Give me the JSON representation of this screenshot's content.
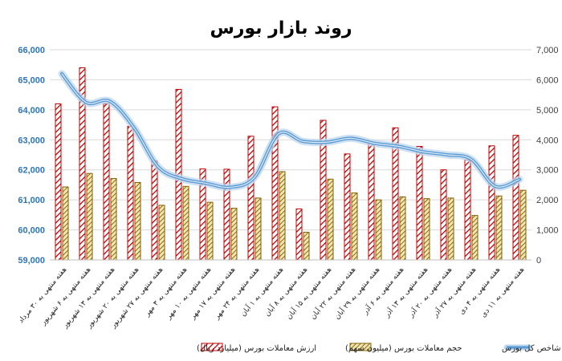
{
  "chart_data": {
    "type": "bar",
    "title": "روند بازار بورس",
    "categories": [
      "هفته منتهی به ۳۰ مرداد",
      "هفته منتهی به ۶ شهریور",
      "هفته منتهی به ۱۳ شهریور",
      "هفته منتهی به ۲۰ شهریور",
      "هفته منتهی به ۲۷ شهریور",
      "هفته منتهی به ۳ مهر",
      "هفته منتهی به ۱۰ مهر",
      "هفته منتهی به ۱۷ مهر",
      "هفته منتهی به ۲۴ مهر",
      "هفته منتهی به ۱ آبان",
      "هفته منتهی به ۸ آبان",
      "هفته منتهی به ۱۵ آبان",
      "هفته منتهی به ۲۲ آبان",
      "هفته منتهی به ۲۹ آبان",
      "هفته منتهی به ۶ آذر",
      "هفته منتهی به ۱۳ آذر",
      "هفته منتهی به ۲۰ آذر",
      "هفته منتهی به ۲۷ آذر",
      "هفته منتهی به ۴ دی",
      "هفته منتهی به ۱۱ دی"
    ],
    "left_axis": {
      "ylim": [
        59000,
        66000
      ],
      "ticks": [
        "59,000",
        "60,000",
        "61,000",
        "62,000",
        "63,000",
        "64,000",
        "65,000",
        "66,000"
      ]
    },
    "right_axis": {
      "ylim": [
        0,
        7000
      ],
      "ticks": [
        "0",
        "1,000",
        "2,000",
        "3,000",
        "4,000",
        "5,000",
        "6,000",
        "7,000"
      ]
    },
    "series": [
      {
        "name": "ارزش معاملات بورس (میلیارد ریال)",
        "kind": "bar",
        "axis": "right",
        "color": "#c00000",
        "values": [
          5200,
          6400,
          5200,
          4450,
          3300,
          5680,
          3030,
          3020,
          4120,
          5100,
          1700,
          4650,
          3530,
          3900,
          4400,
          3780,
          3000,
          3330,
          3800,
          4150
        ]
      },
      {
        "name": "حجم معاملات بورس (میلیون سهم)",
        "kind": "bar",
        "axis": "right",
        "color": "#7f6000",
        "values": [
          2430,
          2880,
          2710,
          2580,
          1820,
          2450,
          1920,
          1720,
          2060,
          2940,
          920,
          2690,
          2230,
          2000,
          2100,
          2040,
          2060,
          1480,
          2130,
          2320
        ]
      },
      {
        "name": "شاخص کل بورس",
        "kind": "line",
        "axis": "right",
        "color": "#5b9bd5",
        "values": [
          6200,
          5250,
          5280,
          4400,
          3100,
          2700,
          2550,
          2420,
          2750,
          4200,
          3950,
          3920,
          4050,
          3880,
          3780,
          3600,
          3500,
          3350,
          2450,
          2680
        ]
      }
    ],
    "grid": true,
    "legend": "bottom"
  }
}
